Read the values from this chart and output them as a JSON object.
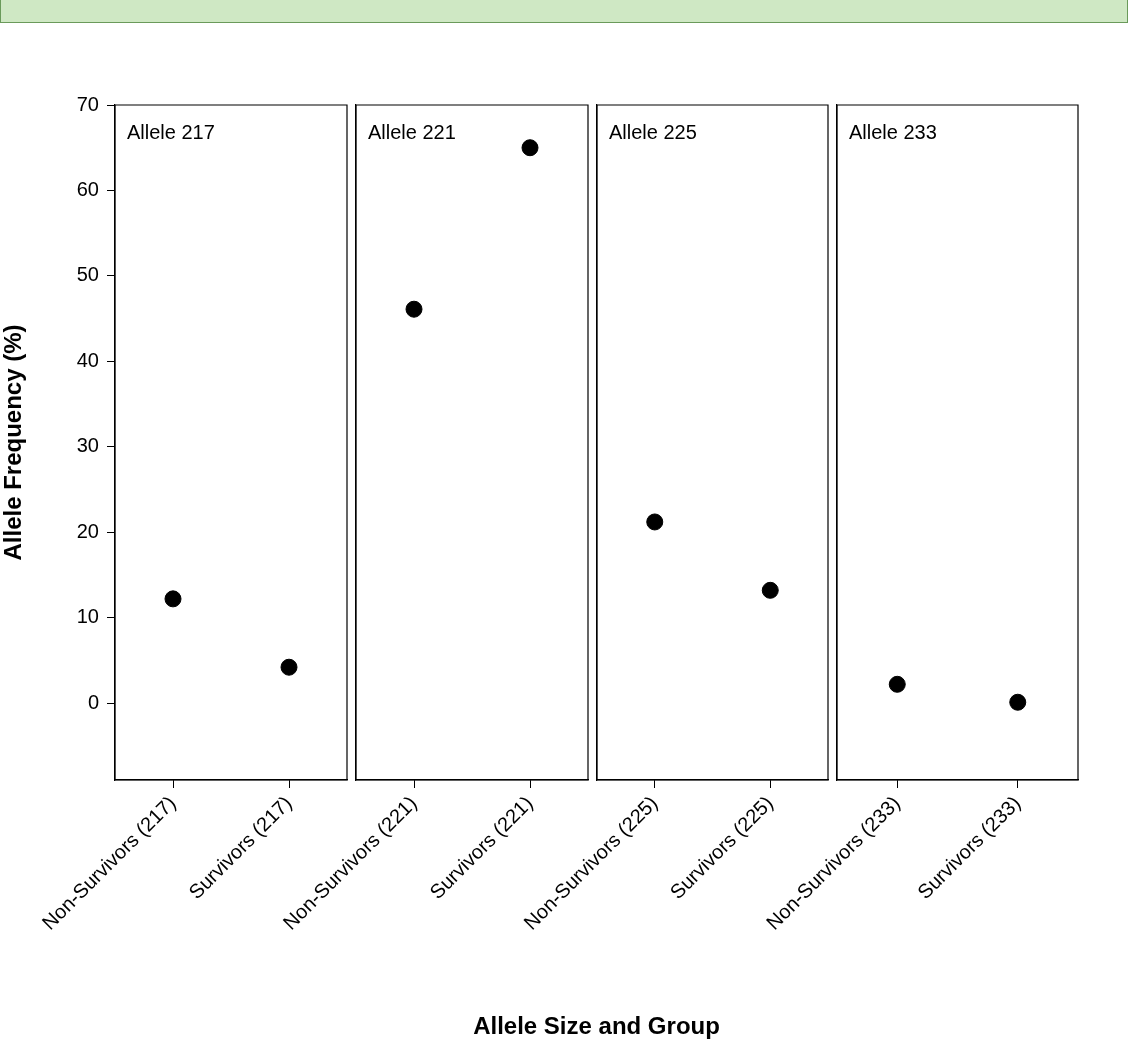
{
  "chart_data": [
    {
      "type": "scatter",
      "ylabel": "Allele Frequency (%)",
      "categories": [
        "Non-Survivors (217)",
        "Survivors (217)"
      ],
      "series": [
        {
          "color": "#000000",
          "values": [
            12.2,
            4.2
          ]
        }
      ],
      "ylim": [
        -9,
        70
      ],
      "yticks": [
        0,
        10,
        20,
        30,
        40,
        50,
        60,
        70
      ],
      "annotations": [
        "Allele 217"
      ],
      "marker": "circle"
    },
    {
      "type": "scatter",
      "xlabel": "Allele Size and Group",
      "categories": [
        "Non-Survivors (221)",
        "Survivors (221)"
      ],
      "series": [
        {
          "color": "#000000",
          "values": [
            46.1,
            65.0
          ]
        }
      ],
      "ylim": [
        -9,
        70
      ],
      "tick_labels": "x",
      "annotations": [
        "Allele 221"
      ],
      "marker": "circle"
    },
    {
      "type": "scatter",
      "categories": [
        "Non-Survivors (225)",
        "Survivors (225)"
      ],
      "series": [
        {
          "color": "#000000",
          "values": [
            21.2,
            13.2
          ]
        }
      ],
      "ylim": [
        -9,
        70
      ],
      "tick_labels": "x",
      "annotations": [
        "Allele 225"
      ],
      "marker": "circle"
    },
    {
      "type": "scatter",
      "categories": [
        "Non-Survivors (233)",
        "Survivors (233)"
      ],
      "series": [
        {
          "color": "#000000",
          "values": [
            2.2,
            0.1
          ]
        }
      ],
      "ylim": [
        -9,
        70
      ],
      "tick_labels": "x",
      "annotations": [
        "Allele 233"
      ],
      "marker": "circle"
    }
  ]
}
